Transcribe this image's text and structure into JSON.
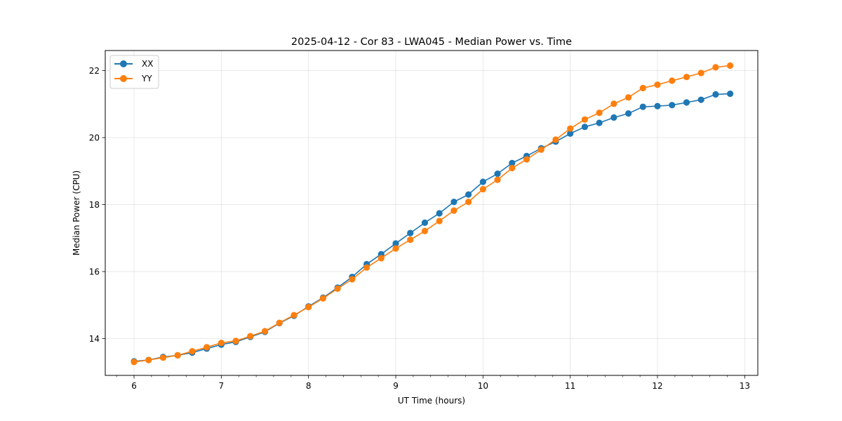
{
  "chart_data": {
    "type": "line",
    "title": "2025-04-12 - Cor 83 - LWA045 - Median Power vs. Time",
    "xlabel": "UT Time (hours)",
    "ylabel": "Median Power (CPU)",
    "xlim": [
      5.67,
      13.15
    ],
    "ylim": [
      12.9,
      22.6
    ],
    "xticks": [
      6,
      7,
      8,
      9,
      10,
      11,
      12,
      13
    ],
    "xtick_labels": [
      "6",
      "7",
      "8",
      "9",
      "10",
      "11",
      "12",
      "13"
    ],
    "yticks": [
      14,
      16,
      18,
      20,
      22
    ],
    "ytick_labels": [
      "14",
      "16",
      "18",
      "20",
      "22"
    ],
    "grid": true,
    "legend_position": "upper-left",
    "x": [
      6.0,
      6.1667,
      6.3333,
      6.5,
      6.6667,
      6.8333,
      7.0,
      7.1667,
      7.3333,
      7.5,
      7.6667,
      7.8333,
      8.0,
      8.1667,
      8.3333,
      8.5,
      8.6667,
      8.8333,
      9.0,
      9.1667,
      9.3333,
      9.5,
      9.6667,
      9.8333,
      10.0,
      10.1667,
      10.3333,
      10.5,
      10.6667,
      10.8333,
      11.0,
      11.1667,
      11.3333,
      11.5,
      11.6667,
      11.8333,
      12.0,
      12.1667,
      12.3333,
      12.5,
      12.6667,
      12.8333
    ],
    "series": [
      {
        "name": "XX",
        "color": "#1f77b4",
        "values": [
          13.32,
          13.36,
          13.45,
          13.5,
          13.58,
          13.7,
          13.82,
          13.9,
          14.05,
          14.2,
          14.46,
          14.68,
          14.96,
          15.22,
          15.52,
          15.84,
          16.22,
          16.52,
          16.84,
          17.15,
          17.46,
          17.74,
          18.08,
          18.3,
          18.68,
          18.92,
          19.24,
          19.45,
          19.68,
          19.88,
          20.12,
          20.32,
          20.44,
          20.6,
          20.72,
          20.92,
          20.94,
          20.97,
          21.05,
          21.13,
          21.29,
          21.31
        ]
      },
      {
        "name": "YY",
        "color": "#ff7f0e",
        "values": [
          13.3,
          13.36,
          13.43,
          13.5,
          13.62,
          13.74,
          13.87,
          13.93,
          14.07,
          14.22,
          14.47,
          14.7,
          14.94,
          15.2,
          15.49,
          15.77,
          16.12,
          16.4,
          16.69,
          16.95,
          17.21,
          17.51,
          17.82,
          18.08,
          18.46,
          18.74,
          19.09,
          19.35,
          19.64,
          19.94,
          20.27,
          20.54,
          20.74,
          21.01,
          21.2,
          21.48,
          21.58,
          21.7,
          21.81,
          21.93,
          22.1,
          22.15
        ]
      }
    ]
  }
}
